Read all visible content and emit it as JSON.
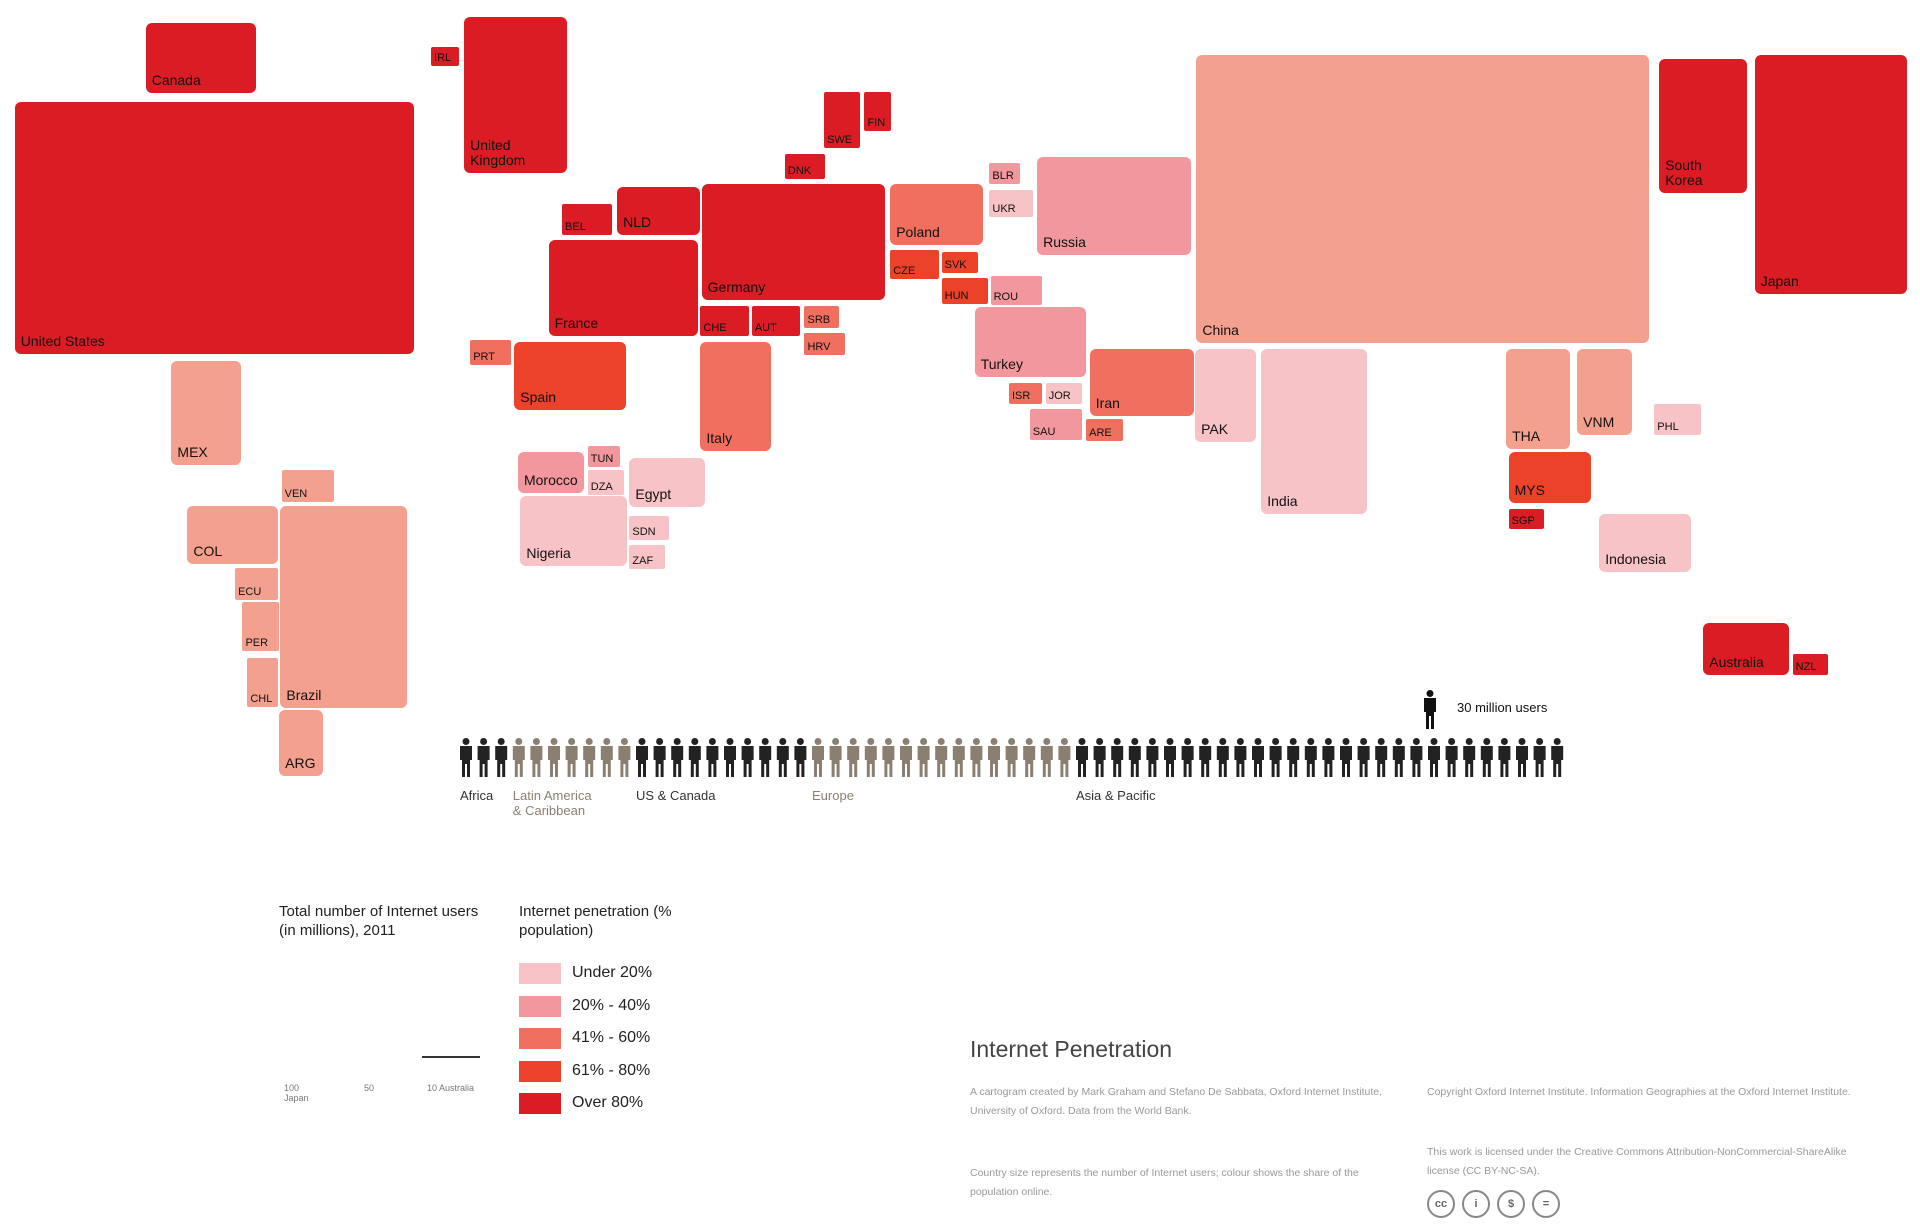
{
  "chart_data": {
    "type": "cartogram",
    "title": "Internet Penetration",
    "legend_size_title": "Total number of Internet users (in millions), 2011",
    "legend_size_labels": [
      "100 Japan",
      "50",
      "10 Australia"
    ],
    "legend_color_title": "Internet penetration (% population)",
    "categories": [
      {
        "label": "Under 20%",
        "color": "#f8c3c7"
      },
      {
        "label": "20% - 40%",
        "color": "#f2979d"
      },
      {
        "label": "41% - 60%",
        "color": "#f06f5e"
      },
      {
        "label": "61% - 80%",
        "color": "#ec4229"
      },
      {
        "label": "Over 80%",
        "color": "#dc1c24"
      }
    ],
    "countries": [
      {
        "code": "CAN",
        "label": "Canada",
        "color": "#dc1c24"
      },
      {
        "code": "USA",
        "label": "United States",
        "color": "#dc1c24"
      },
      {
        "code": "GBR",
        "label": "United\nKingdom",
        "color": "#dc1c24"
      },
      {
        "code": "IRL",
        "label": "IRL",
        "color": "#dc1c24"
      },
      {
        "code": "SWE",
        "label": "SWE",
        "color": "#dc1c24"
      },
      {
        "code": "FIN",
        "label": "FIN",
        "color": "#dc1c24"
      },
      {
        "code": "DNK",
        "label": "DNK",
        "color": "#dc1c24"
      },
      {
        "code": "BEL",
        "label": "BEL",
        "color": "#dc1c24"
      },
      {
        "code": "NLD",
        "label": "NLD",
        "color": "#dc1c24"
      },
      {
        "code": "DEU",
        "label": "Germany",
        "color": "#dc1c24"
      },
      {
        "code": "FRA",
        "label": "France",
        "color": "#dc1c24"
      },
      {
        "code": "CHE",
        "label": "CHE",
        "color": "#dc1c24"
      },
      {
        "code": "AUT",
        "label": "AUT",
        "color": "#dc1c24"
      },
      {
        "code": "SRB",
        "label": "SRB",
        "color": "#f06f5e"
      },
      {
        "code": "HRV",
        "label": "HRV",
        "color": "#f06f5e"
      },
      {
        "code": "PRT",
        "label": "PRT",
        "color": "#f06f5e"
      },
      {
        "code": "ESP",
        "label": "Spain",
        "color": "#ec4229"
      },
      {
        "code": "ITA",
        "label": "Italy",
        "color": "#f06f5e"
      },
      {
        "code": "POL",
        "label": "Poland",
        "color": "#f06f5e"
      },
      {
        "code": "CZE",
        "label": "CZE",
        "color": "#ec4229"
      },
      {
        "code": "SVK",
        "label": "SVK",
        "color": "#ec4229"
      },
      {
        "code": "HUN",
        "label": "HUN",
        "color": "#ec4229"
      },
      {
        "code": "ROU",
        "label": "ROU",
        "color": "#f2979d"
      },
      {
        "code": "BLR",
        "label": "BLR",
        "color": "#f2979d"
      },
      {
        "code": "UKR",
        "label": "UKR",
        "color": "#f8c3c7"
      },
      {
        "code": "RUS",
        "label": "Russia",
        "color": "#f2979d"
      },
      {
        "code": "TUR",
        "label": "Turkey",
        "color": "#f2979d"
      },
      {
        "code": "ISR",
        "label": "ISR",
        "color": "#f06f5e"
      },
      {
        "code": "JOR",
        "label": "JOR",
        "color": "#f8c3c7"
      },
      {
        "code": "SAU",
        "label": "SAU",
        "color": "#f2979d"
      },
      {
        "code": "ARE",
        "label": "ARE",
        "color": "#f06f5e"
      },
      {
        "code": "IRN",
        "label": "Iran",
        "color": "#f06f5e"
      },
      {
        "code": "PAK",
        "label": "PAK",
        "color": "#f8c3c7"
      },
      {
        "code": "IND",
        "label": "India",
        "color": "#f8c3c7"
      },
      {
        "code": "CHN",
        "label": "China",
        "color": "#f4a08f"
      },
      {
        "code": "KOR",
        "label": "South\nKorea",
        "color": "#dc1c24"
      },
      {
        "code": "JPN",
        "label": "Japan",
        "color": "#dc1c24"
      },
      {
        "code": "THA",
        "label": "THA",
        "color": "#f4a08f"
      },
      {
        "code": "VNM",
        "label": "VNM",
        "color": "#f4a08f"
      },
      {
        "code": "PHL",
        "label": "PHL",
        "color": "#f8c3c7"
      },
      {
        "code": "MYS",
        "label": "MYS",
        "color": "#ec4229"
      },
      {
        "code": "SGP",
        "label": "SGP",
        "color": "#dc1c24"
      },
      {
        "code": "IDN",
        "label": "Indonesia",
        "color": "#f8c3c7"
      },
      {
        "code": "AUS",
        "label": "Australia",
        "color": "#dc1c24"
      },
      {
        "code": "NZL",
        "label": "NZL",
        "color": "#dc1c24"
      },
      {
        "code": "MEX",
        "label": "MEX",
        "color": "#f4a08f"
      },
      {
        "code": "VEN",
        "label": "VEN",
        "color": "#f4a08f"
      },
      {
        "code": "COL",
        "label": "COL",
        "color": "#f4a08f"
      },
      {
        "code": "ECU",
        "label": "ECU",
        "color": "#f4a08f"
      },
      {
        "code": "PER",
        "label": "PER",
        "color": "#f4a08f"
      },
      {
        "code": "CHL",
        "label": "CHL",
        "color": "#f4a08f"
      },
      {
        "code": "BRA",
        "label": "Brazil",
        "color": "#f4a08f"
      },
      {
        "code": "ARG",
        "label": "ARG",
        "color": "#f4a08f"
      },
      {
        "code": "MAR",
        "label": "Morocco",
        "color": "#f2979d"
      },
      {
        "code": "TUN",
        "label": "TUN",
        "color": "#f2979d"
      },
      {
        "code": "DZA",
        "label": "DZA",
        "color": "#f8c3c7"
      },
      {
        "code": "EGY",
        "label": "Egypt",
        "color": "#f8c3c7"
      },
      {
        "code": "NGA",
        "label": "Nigeria",
        "color": "#f8c3c7"
      },
      {
        "code": "SDN",
        "label": "SDN",
        "color": "#f8c3c7"
      },
      {
        "code": "ZAF",
        "label": "ZAF",
        "color": "#f8c3c7"
      }
    ],
    "people": {
      "unit_label": "30 million users",
      "groups": [
        {
          "label": "Africa",
          "count": 3,
          "color": "#222222"
        },
        {
          "label": "Latin America\n& Caribbean",
          "count": 7,
          "color": "#8a7f70"
        },
        {
          "label": "US & Canada",
          "count": 10,
          "color": "#222222"
        },
        {
          "label": "Europe",
          "count": 15,
          "color": "#8a7f70"
        },
        {
          "label": "Asia & Pacific",
          "count": 28,
          "color": "#222222"
        }
      ]
    }
  },
  "notes": {
    "left_1": "A cartogram created by Mark Graham and Stefano De Sabbata, Oxford Internet Institute, University of Oxford. Data from the World Bank.",
    "left_2": "Country size represents the number of Internet users; colour shows the share of the population online.",
    "right_1": "Copyright Oxford Internet Institute. Information Geographies at the Oxford Internet Institute.",
    "right_2": "This work is licensed under the Creative Commons Attribution-NonCommercial-ShareAlike license (CC BY-NC-SA).",
    "cc_icons": [
      "cc-icon",
      "by-icon",
      "nc-icon",
      "sa-icon"
    ]
  }
}
